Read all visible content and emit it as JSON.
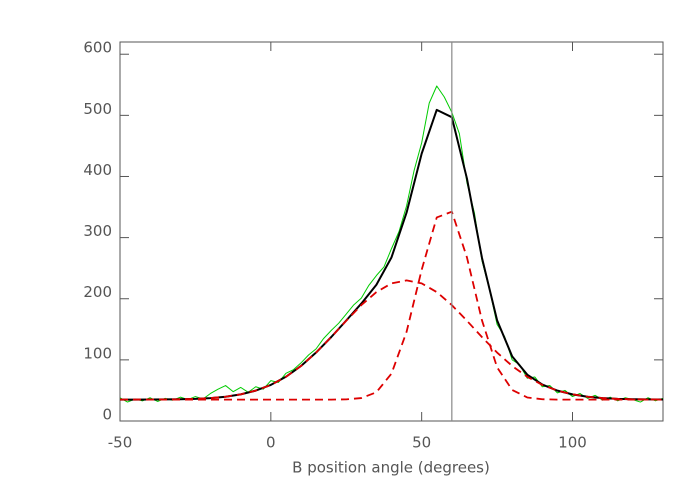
{
  "chart_data": {
    "type": "line",
    "xlabel": "B position angle (degrees)",
    "xlim": [
      -50,
      130
    ],
    "xticks": [
      -50,
      0,
      50,
      100
    ],
    "ylim": [
      0,
      620
    ],
    "yticks": [
      0,
      100,
      200,
      300,
      400,
      500,
      600
    ],
    "vline": 60,
    "vline_color": "#888888",
    "series": [
      {
        "color": "#00cc00",
        "width": 1,
        "x": [
          -50,
          -47.5,
          -45,
          -42.5,
          -40,
          -37.5,
          -35,
          -32.5,
          -30,
          -27.5,
          -25,
          -22.5,
          -20,
          -17.5,
          -15,
          -12.5,
          -10,
          -7.5,
          -5,
          -2.5,
          0,
          2.5,
          5,
          7.5,
          10,
          12.5,
          15,
          17.5,
          20,
          22.5,
          25,
          27.5,
          30,
          32.5,
          35,
          37.5,
          40,
          42.5,
          45,
          47.5,
          50,
          52.5,
          55,
          57.5,
          60,
          62.5,
          65,
          67.5,
          70,
          72.5,
          75,
          77.5,
          80,
          82.5,
          85,
          87.5,
          90,
          92.5,
          95,
          97.5,
          100,
          102.5,
          105,
          107.5,
          110,
          112.5,
          115,
          117.5,
          120,
          122.5,
          125,
          127.5,
          130
        ],
        "values": [
          38,
          31,
          36,
          33,
          38,
          32,
          37,
          34,
          39,
          35,
          40,
          36,
          45,
          52,
          58,
          48,
          55,
          47,
          56,
          52,
          66,
          63,
          78,
          84,
          95,
          108,
          118,
          135,
          148,
          160,
          175,
          190,
          201,
          222,
          238,
          252,
          282,
          310,
          352,
          410,
          455,
          520,
          548,
          530,
          505,
          470,
          390,
          340,
          262,
          215,
          158,
          138,
          100,
          92,
          70,
          72,
          56,
          58,
          46,
          50,
          40,
          45,
          37,
          42,
          34,
          39,
          33,
          38,
          35,
          31,
          38,
          33,
          37
        ]
      },
      {
        "color": "#000000",
        "width": 2,
        "x": [
          -50,
          -45,
          -40,
          -35,
          -30,
          -25,
          -20,
          -15,
          -10,
          -5,
          0,
          5,
          10,
          15,
          20,
          25,
          30,
          35,
          40,
          45,
          50,
          55,
          60,
          65,
          70,
          75,
          80,
          85,
          90,
          95,
          100,
          105,
          110,
          115,
          120,
          125,
          130
        ],
        "values": [
          35,
          35,
          35.1,
          35.3,
          35.6,
          36.2,
          37.5,
          39.7,
          43.6,
          49.7,
          59.0,
          72.3,
          90.0,
          112.0,
          137.2,
          164.4,
          192.1,
          222.9,
          267.7,
          340.9,
          437.4,
          509.0,
          497.0,
          396.8,
          266.7,
          164.9,
          105.8,
          75.8,
          59.6,
          49.7,
          43.6,
          39.7,
          37.5,
          36.2,
          35.6,
          35.3,
          35.1
        ]
      },
      {
        "color": "#dd0000",
        "width": 1.8,
        "dashed": true,
        "x": [
          -50,
          -45,
          -40,
          -35,
          -30,
          -25,
          -20,
          -15,
          -10,
          -5,
          0,
          5,
          10,
          15,
          20,
          25,
          30,
          35,
          40,
          45,
          50,
          55,
          60,
          65,
          70,
          75,
          80,
          85,
          90,
          95,
          100,
          105,
          110,
          115,
          120,
          125,
          130
        ],
        "values": [
          35,
          35,
          35.1,
          35.3,
          35.6,
          36.2,
          37.5,
          39.7,
          43.6,
          49.7,
          59.0,
          72.3,
          90.0,
          112.0,
          137.2,
          164.0,
          189.6,
          210.9,
          225.1,
          230,
          225.1,
          210.9,
          189.6,
          164.0,
          137.2,
          112.0,
          90.0,
          72.3,
          59.0,
          49.7,
          43.6,
          39.7,
          37.5,
          36.2,
          35.6,
          35.3,
          35.1
        ]
      },
      {
        "color": "#dd0000",
        "width": 1.8,
        "dashed": true,
        "x": [
          -50,
          -45,
          -40,
          -35,
          -30,
          -25,
          -20,
          -15,
          -10,
          -5,
          0,
          5,
          10,
          15,
          20,
          25,
          30,
          35,
          40,
          45,
          50,
          55,
          60,
          65,
          70,
          75,
          80,
          85,
          90,
          95,
          100,
          105,
          110,
          115,
          120,
          125,
          130
        ],
        "values": [
          35,
          35,
          35,
          35,
          35,
          35,
          35,
          35,
          35,
          35,
          35,
          35,
          35,
          35,
          35,
          35.4,
          37.5,
          47.0,
          77.6,
          145.9,
          247.3,
          333.0,
          342.4,
          267.8,
          164.5,
          87.9,
          50.8,
          38.5,
          35.6,
          35,
          35,
          35,
          35,
          35,
          35,
          35,
          35
        ]
      }
    ]
  }
}
